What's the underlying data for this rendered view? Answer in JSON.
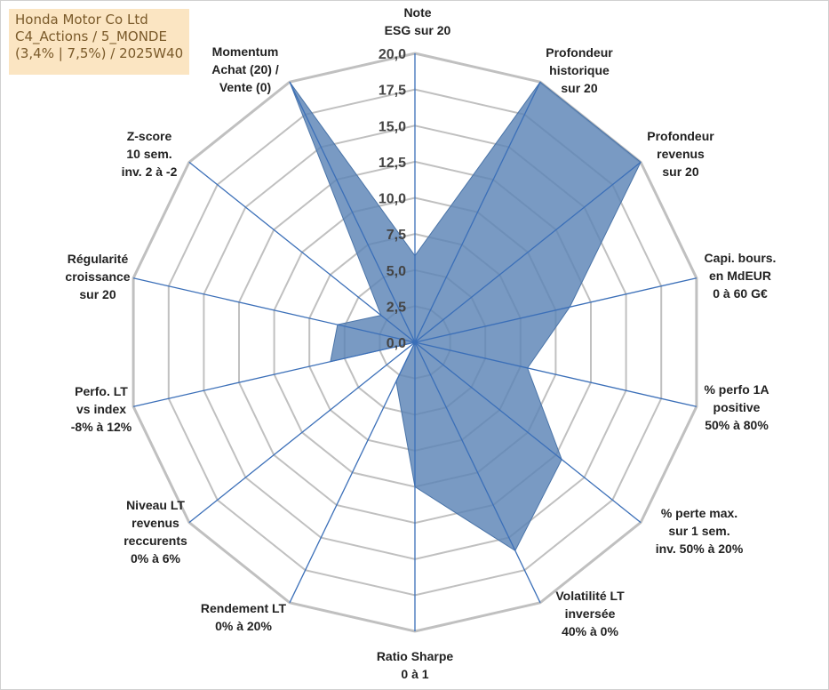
{
  "title_box": {
    "line1": "Honda Motor Co Ltd",
    "line2": "C4_Actions / 5_MONDE",
    "line3": "(3,4% | 7,5%) / 2025W40"
  },
  "chart_data": {
    "type": "radar",
    "range": [
      0,
      20
    ],
    "ticks": [
      "0,0",
      "2,5",
      "5,0",
      "7,5",
      "10,0",
      "12,5",
      "15,0",
      "17,5",
      "20,0"
    ],
    "grid": true,
    "fill_color": "#5b84b6",
    "grid_color": "#c0c0c0",
    "spoke_color": "#3b6fb8",
    "axes": [
      {
        "label": [
          "Note",
          "ESG sur 20"
        ],
        "value": 6.0
      },
      {
        "label": [
          "Profondeur",
          "historique",
          "sur 20"
        ],
        "value": 20.0
      },
      {
        "label": [
          "Profondeur",
          "revenus",
          "sur 20"
        ],
        "value": 20.0
      },
      {
        "label": [
          "Capi. bours.",
          "en MdEUR",
          "0 à 60 G€"
        ],
        "value": 11.0
      },
      {
        "label": [
          "% perfo 1A",
          "positive",
          "50% à 80%"
        ],
        "value": 8.0
      },
      {
        "label": [
          "% perte max.",
          "sur 1 sem.",
          "inv. 50% à 20%"
        ],
        "value": 13.0
      },
      {
        "label": [
          "Volatilité LT",
          "inversée",
          "40% à 0%"
        ],
        "value": 16.0
      },
      {
        "label": [
          "Ratio Sharpe",
          "0 à 1"
        ],
        "value": 10.0
      },
      {
        "label": [
          "Rendement LT",
          "0% à 20%"
        ],
        "value": 3.0
      },
      {
        "label": [
          "Niveau LT",
          "revenus",
          "reccurents",
          "0% à 6%"
        ],
        "value": 0.0
      },
      {
        "label": [
          "Perfo. LT",
          "vs index",
          "-8% à 12%"
        ],
        "value": 6.0
      },
      {
        "label": [
          "Régularité",
          "croissance",
          "sur 20"
        ],
        "value": 5.5
      },
      {
        "label": [
          "Z-score",
          "10 sem.",
          "inv. 2 à -2"
        ],
        "value": 3.0
      },
      {
        "label": [
          "Momentum",
          "Achat (20) /",
          "Vente (0)"
        ],
        "value": 20.0
      }
    ]
  }
}
